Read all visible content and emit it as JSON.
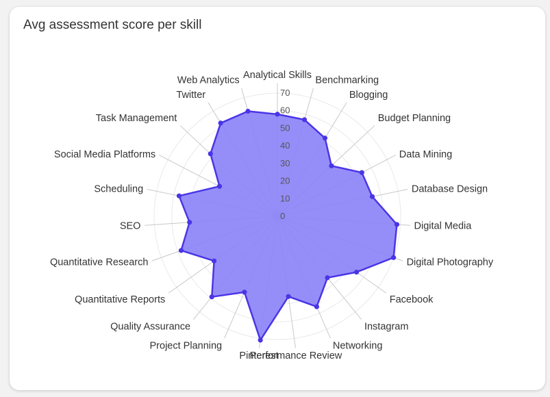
{
  "title": "Avg assessment score per skill",
  "colors": {
    "fill": "#8c84f7",
    "stroke": "#4a35e6",
    "point": "#4a35e6"
  },
  "chart_data": {
    "type": "radar",
    "title": "Avg assessment score per skill",
    "rlim": [
      0,
      70
    ],
    "ticks": [
      "0",
      "10",
      "20",
      "30",
      "40",
      "50",
      "60",
      "70"
    ],
    "grid": true,
    "categories": [
      "Analytical Skills",
      "Benchmarking",
      "Blogging",
      "Budget Planning",
      "Data Mining",
      "Database Design",
      "Digital Media",
      "Digital Photography",
      "Facebook",
      "Instagram",
      "Networking",
      "Performance Review",
      "Pinterest",
      "Project Planning",
      "Quality Assurance",
      "Quantitative Reports",
      "Quantitative Research",
      "SEO",
      "Scheduling",
      "Social Media Platforms",
      "Task Management",
      "Twitter",
      "Web Analytics"
    ],
    "series": [
      {
        "values": [
          58,
          57,
          52,
          42,
          54,
          55,
          68,
          70,
          55,
          45,
          56,
          46,
          71,
          47,
          59,
          44,
          58,
          50,
          57,
          37,
          52,
          62,
          62
        ]
      }
    ]
  }
}
